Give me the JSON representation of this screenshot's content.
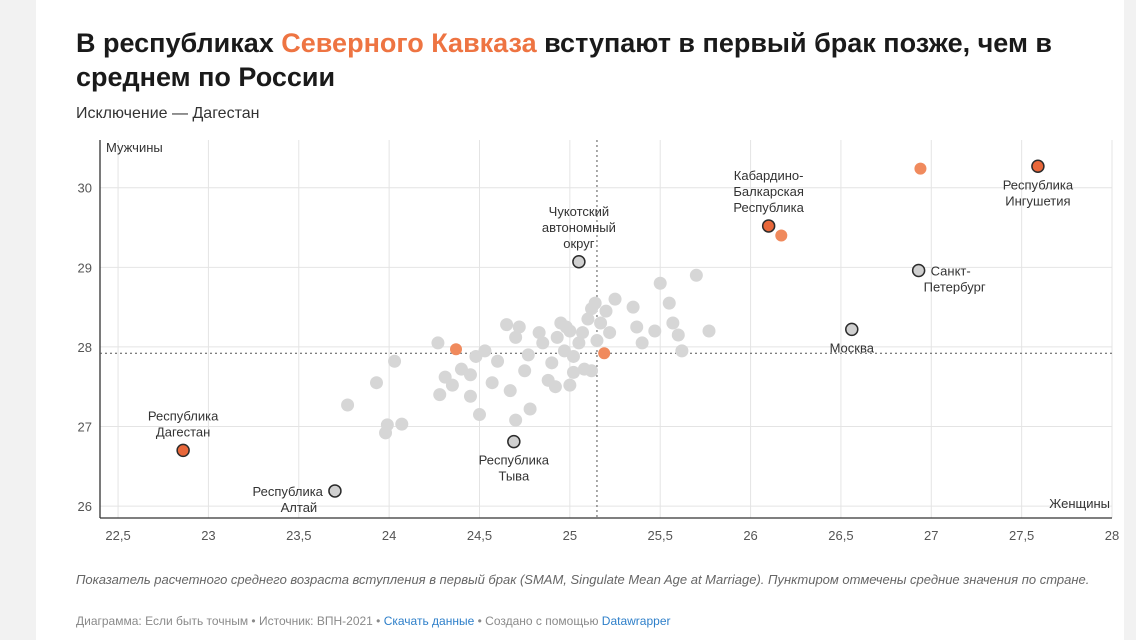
{
  "header": {
    "title_before": "В республиках ",
    "title_highlight": "Северного Кавказа",
    "title_after": " вступают в первый брак позже, чем в среднем по России",
    "subtitle": "Исключение — Дагестан"
  },
  "chart_data": {
    "type": "scatter",
    "ylabel": "Мужчины",
    "xlabel": "Женщины",
    "xlim": [
      22.4,
      28
    ],
    "ylim": [
      25.85,
      30.6
    ],
    "xticks": [
      22.5,
      23,
      23.5,
      24,
      24.5,
      25,
      25.5,
      26,
      26.5,
      27,
      27.5,
      28
    ],
    "xtick_labels": [
      "22,5",
      "23",
      "23,5",
      "24",
      "24,5",
      "25",
      "25,5",
      "26",
      "26,5",
      "27",
      "27,5",
      "28"
    ],
    "yticks": [
      26,
      27,
      28,
      29,
      30
    ],
    "ytick_labels": [
      "26",
      "27",
      "28",
      "29",
      "30"
    ],
    "mean_x": 25.15,
    "mean_y": 27.92,
    "colors": {
      "other": "#d6d6d6",
      "caucasus": "#f08a5d",
      "labeled_caucasus": "#e8673a",
      "labeled_other": "#d0d0d0",
      "outline": "#2b2b2b",
      "mean_line": "#555555",
      "grid": "#e4e4e4",
      "axis": "#333333"
    },
    "other_regions": [
      [
        23.77,
        27.27
      ],
      [
        23.93,
        27.55
      ],
      [
        23.98,
        26.92
      ],
      [
        23.99,
        27.02
      ],
      [
        24.03,
        27.82
      ],
      [
        24.07,
        27.03
      ],
      [
        24.27,
        28.05
      ],
      [
        24.28,
        27.4
      ],
      [
        24.31,
        27.62
      ],
      [
        24.35,
        27.52
      ],
      [
        24.4,
        27.72
      ],
      [
        24.45,
        27.65
      ],
      [
        24.45,
        27.38
      ],
      [
        24.48,
        27.88
      ],
      [
        24.5,
        27.15
      ],
      [
        24.53,
        27.95
      ],
      [
        24.57,
        27.55
      ],
      [
        24.6,
        27.82
      ],
      [
        24.65,
        28.28
      ],
      [
        24.67,
        27.45
      ],
      [
        24.7,
        28.12
      ],
      [
        24.7,
        27.08
      ],
      [
        24.72,
        28.25
      ],
      [
        24.75,
        27.7
      ],
      [
        24.77,
        27.9
      ],
      [
        24.78,
        27.22
      ],
      [
        24.83,
        28.18
      ],
      [
        24.85,
        28.05
      ],
      [
        24.88,
        27.58
      ],
      [
        24.9,
        27.8
      ],
      [
        24.92,
        27.5
      ],
      [
        24.93,
        28.12
      ],
      [
        24.95,
        28.3
      ],
      [
        24.97,
        27.95
      ],
      [
        24.98,
        28.25
      ],
      [
        25.0,
        27.52
      ],
      [
        25.0,
        28.2
      ],
      [
        25.02,
        27.88
      ],
      [
        25.05,
        28.05
      ],
      [
        25.07,
        28.18
      ],
      [
        25.08,
        27.72
      ],
      [
        25.1,
        28.35
      ],
      [
        25.12,
        28.48
      ],
      [
        25.14,
        28.55
      ],
      [
        25.15,
        28.08
      ],
      [
        25.17,
        28.3
      ],
      [
        25.2,
        28.45
      ],
      [
        25.22,
        28.18
      ],
      [
        25.25,
        28.6
      ],
      [
        25.12,
        27.7
      ],
      [
        25.02,
        27.68
      ],
      [
        25.35,
        28.5
      ],
      [
        25.37,
        28.25
      ],
      [
        25.4,
        28.05
      ],
      [
        25.47,
        28.2
      ],
      [
        25.5,
        28.8
      ],
      [
        25.55,
        28.55
      ],
      [
        25.57,
        28.3
      ],
      [
        25.6,
        28.15
      ],
      [
        25.62,
        27.95
      ],
      [
        25.7,
        28.9
      ],
      [
        25.77,
        28.2
      ]
    ],
    "caucasus_regions": [
      [
        24.37,
        27.97
      ],
      [
        25.19,
        27.92
      ],
      [
        26.17,
        29.4
      ],
      [
        26.94,
        30.24
      ]
    ],
    "labeled_points": [
      {
        "x": 22.86,
        "y": 26.7,
        "group": "caucasus",
        "label": [
          "Республика",
          "Дагестан"
        ],
        "anchor": "above"
      },
      {
        "x": 23.7,
        "y": 26.19,
        "group": "other",
        "label": [
          "Республика",
          "Алтай"
        ],
        "anchor": "left"
      },
      {
        "x": 24.69,
        "y": 26.81,
        "group": "other",
        "label": [
          "Республика",
          "Тыва"
        ],
        "anchor": "below"
      },
      {
        "x": 25.05,
        "y": 29.07,
        "group": "other",
        "label": [
          "Чукотский",
          "автономный",
          "округ"
        ],
        "anchor": "above"
      },
      {
        "x": 26.1,
        "y": 29.52,
        "group": "caucasus",
        "label": [
          "Кабардино-",
          "Балкарская",
          "Республика"
        ],
        "anchor": "above"
      },
      {
        "x": 27.59,
        "y": 30.27,
        "group": "caucasus",
        "label": [
          "Республика",
          "Ингушетия"
        ],
        "anchor": "below"
      },
      {
        "x": 26.93,
        "y": 28.96,
        "group": "other",
        "label": [
          "Санкт-",
          "Петербург"
        ],
        "anchor": "right"
      },
      {
        "x": 26.56,
        "y": 28.22,
        "group": "other",
        "label": [
          "Москва"
        ],
        "anchor": "below"
      }
    ]
  },
  "notes": {
    "text": "Показатель расчетного среднего возраста вступления в первый брак (SMAM, Singulate Mean Age at Marriage). Пунктиром отмечены средние значения по стране."
  },
  "footer": {
    "prefix": "Диаграмма: Если быть точным • Источник: ВПН-2021 • ",
    "download_link": "Скачать данные",
    "middle": " • Создано с помощью ",
    "tool_link": "Datawrapper"
  }
}
